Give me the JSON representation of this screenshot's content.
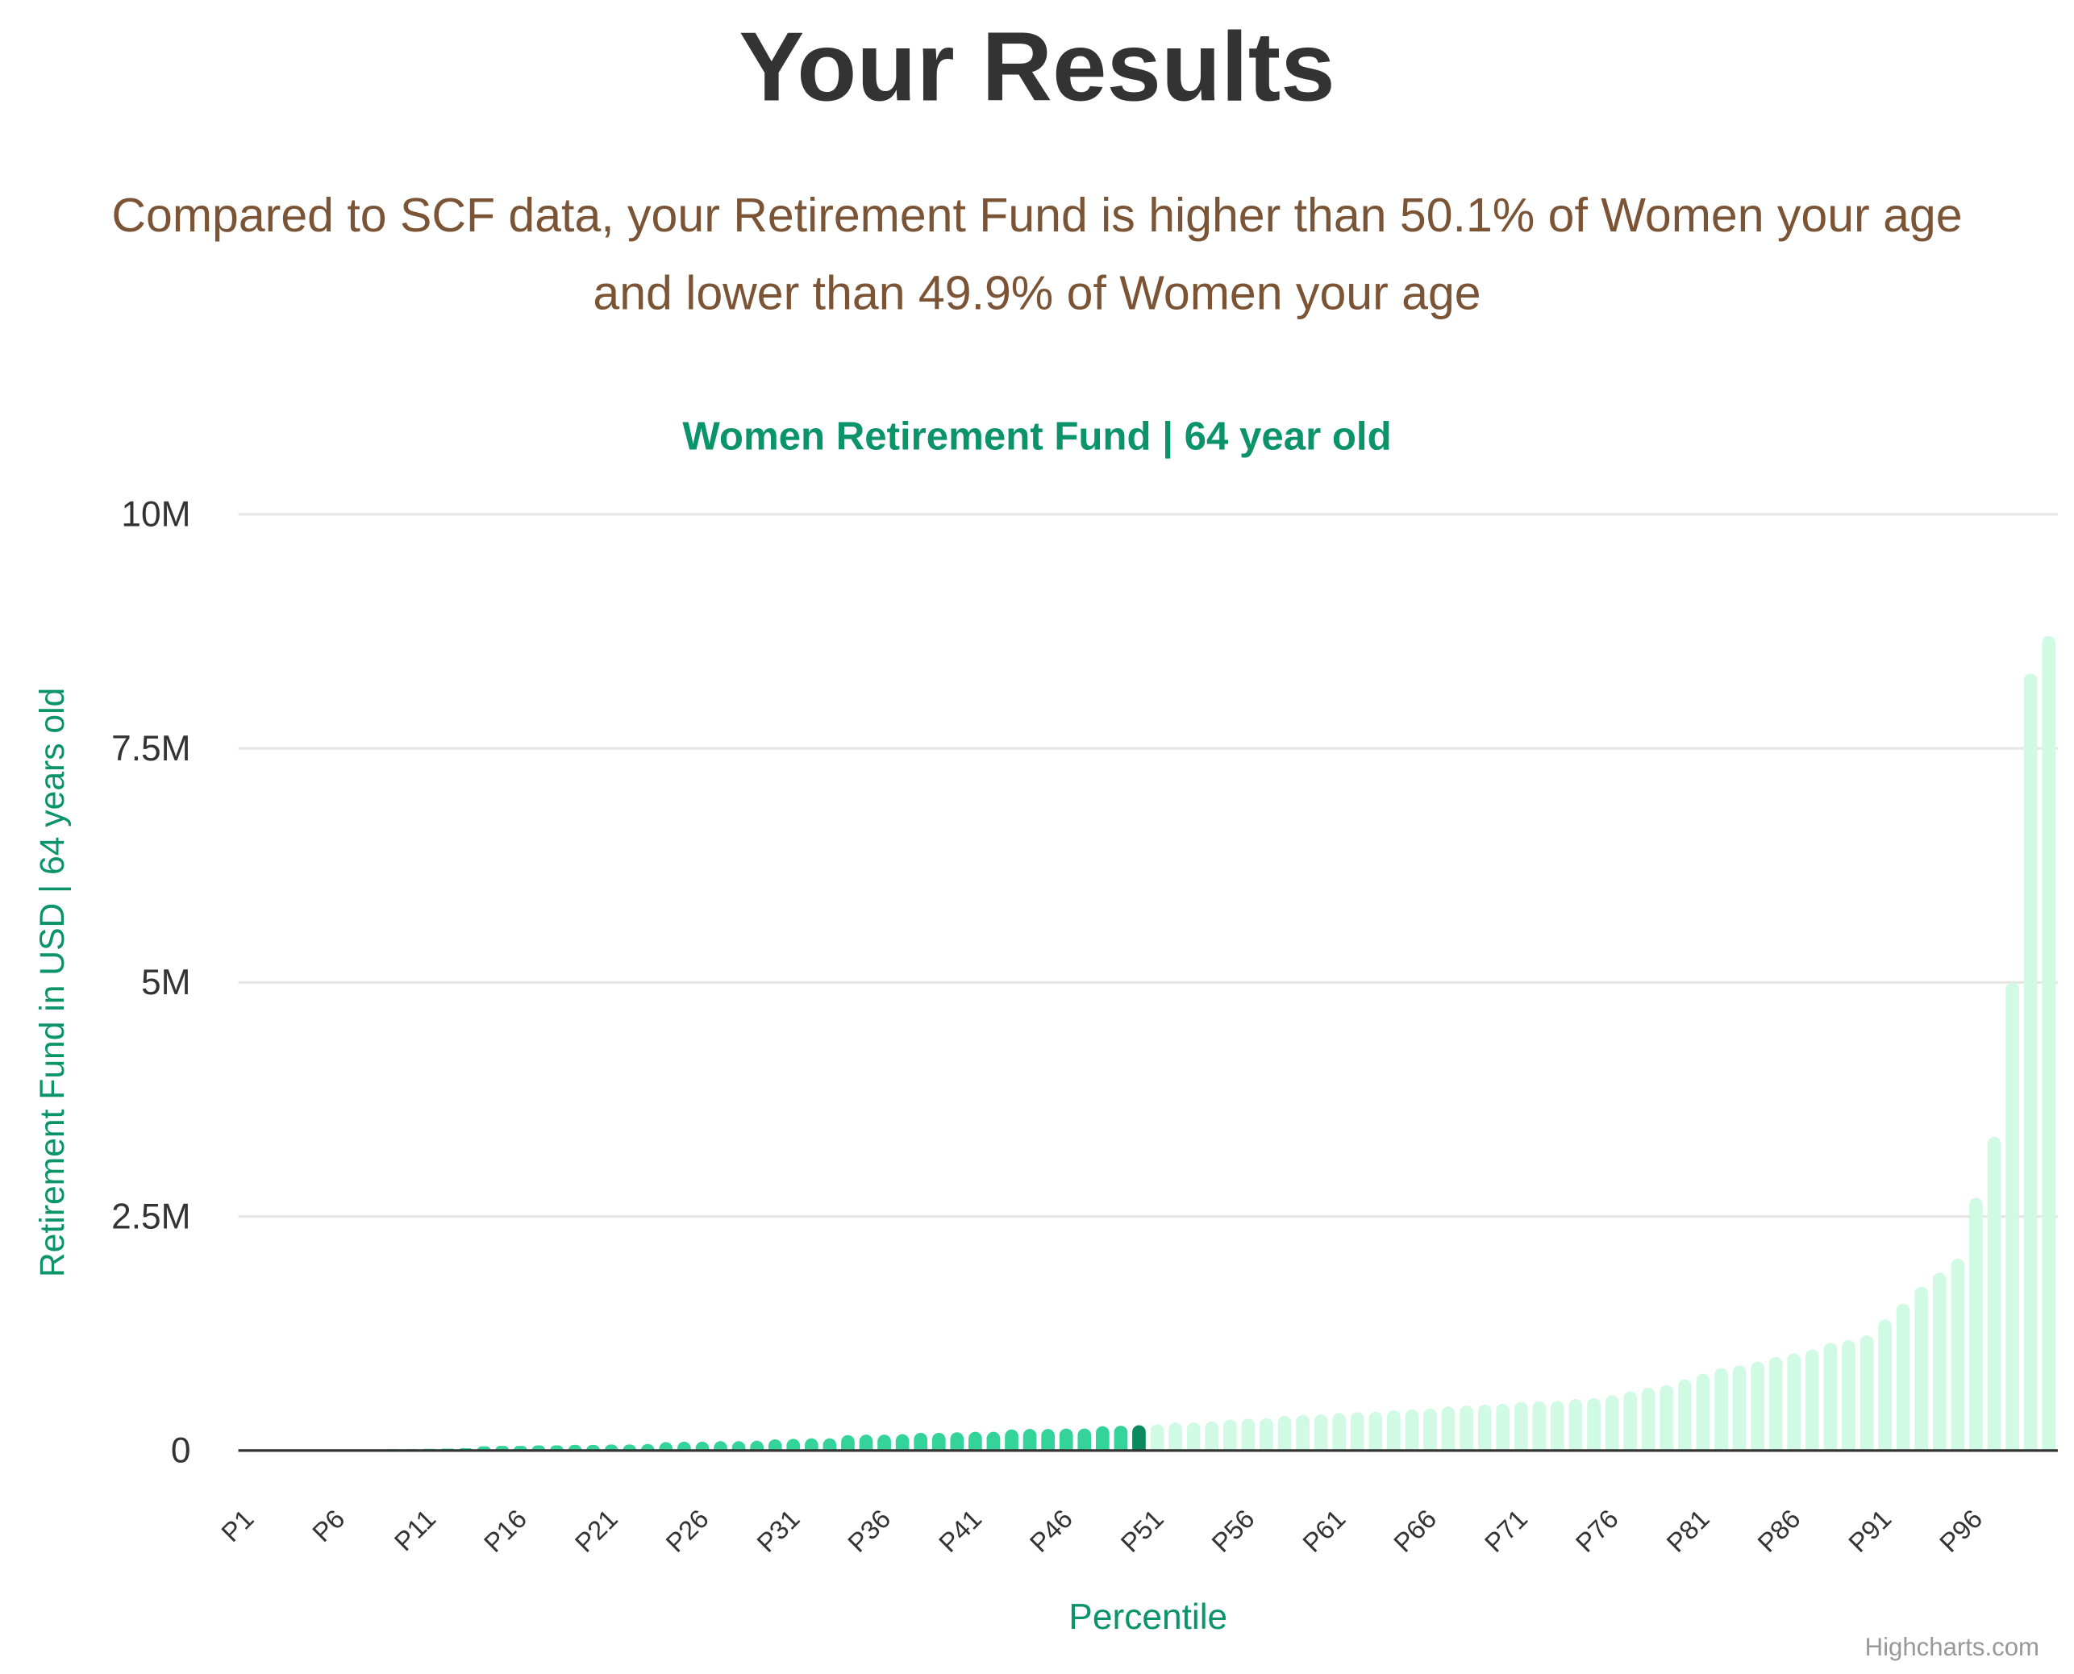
{
  "header": {
    "title": "Your Results",
    "subtitle_lines": [
      "Compared to SCF data, your Retirement Fund is higher than 50.1% of Women your age",
      "and lower than 49.9% of Women your age"
    ]
  },
  "chart_data": {
    "type": "bar",
    "title": "Women Retirement Fund | 64 year old",
    "x_label": "Percentile",
    "y_label": "Retirement Fund in USD | 64 years old",
    "credits": "Highcharts.com",
    "categories": [
      "P1",
      null,
      null,
      null,
      null,
      "P6",
      null,
      null,
      null,
      null,
      "P11",
      null,
      null,
      null,
      null,
      "P16",
      null,
      null,
      null,
      null,
      "P21",
      null,
      null,
      null,
      null,
      "P26",
      null,
      null,
      null,
      null,
      "P31",
      null,
      null,
      null,
      null,
      "P36",
      null,
      null,
      null,
      null,
      "P41",
      null,
      null,
      null,
      null,
      "P46",
      null,
      null,
      null,
      null,
      "P51",
      null,
      null,
      null,
      null,
      "P56",
      null,
      null,
      null,
      null,
      "P61",
      null,
      null,
      null,
      null,
      "P66",
      null,
      null,
      null,
      null,
      "P71",
      null,
      null,
      null,
      null,
      "P76",
      null,
      null,
      null,
      null,
      "P81",
      null,
      null,
      null,
      null,
      "P86",
      null,
      null,
      null,
      null,
      "P91",
      null,
      null,
      null,
      null,
      "P96",
      null,
      null,
      null,
      null
    ],
    "values": [
      0,
      0,
      0,
      0,
      0,
      10000,
      10000,
      12000,
      15000,
      15000,
      18000,
      20000,
      25000,
      45000,
      50000,
      50000,
      55000,
      55000,
      60000,
      60000,
      65000,
      65000,
      70000,
      90000,
      95000,
      95000,
      100000,
      100000,
      105000,
      120000,
      125000,
      130000,
      130000,
      165000,
      170000,
      170000,
      175000,
      190000,
      190000,
      195000,
      200000,
      200000,
      225000,
      230000,
      230000,
      235000,
      235000,
      260000,
      265000,
      270000,
      280000,
      300000,
      300000,
      310000,
      330000,
      340000,
      345000,
      370000,
      380000,
      385000,
      400000,
      410000,
      415000,
      430000,
      440000,
      450000,
      470000,
      480000,
      490000,
      500000,
      520000,
      525000,
      530000,
      550000,
      560000,
      590000,
      630000,
      670000,
      700000,
      760000,
      820000,
      880000,
      910000,
      950000,
      1000000,
      1040000,
      1080000,
      1150000,
      1180000,
      1230000,
      1400000,
      1570000,
      1750000,
      1900000,
      2050000,
      2700000,
      3350000,
      5000000,
      8300000,
      8700000
    ],
    "colors": {
      "below": "#34d399",
      "you": "#0b8a5f",
      "above": "#d1fae5"
    },
    "highlight_index": 49,
    "ylim": [
      0,
      10000000
    ],
    "yticks": [
      0,
      {
        "value": 2500000,
        "label": "2.5M"
      },
      {
        "value": 5000000,
        "label": "5M"
      },
      {
        "value": 7500000,
        "label": "7.5M"
      },
      {
        "value": 10000000,
        "label": "10M"
      }
    ],
    "grid": true
  }
}
